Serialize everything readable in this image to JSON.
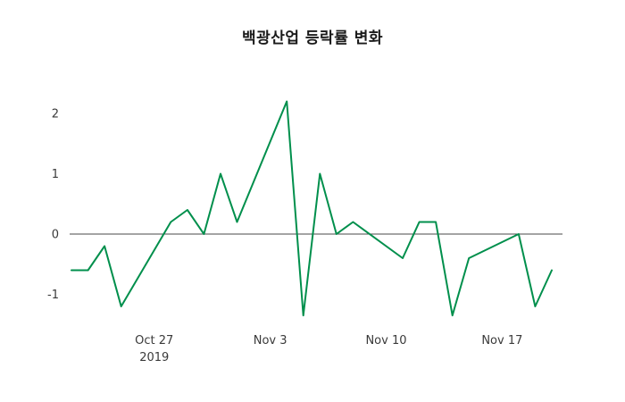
{
  "title": "백광산업 등락률 변화",
  "colors": {
    "line": "#008f4c",
    "zero_line": "#4a4a4a",
    "tick_text": "#3a3a3a",
    "background": "#ffffff"
  },
  "chart_data": {
    "type": "line",
    "title": "백광산업 등락률 변화",
    "xlabel": "",
    "ylabel": "",
    "grid": false,
    "legend": false,
    "zero_line": true,
    "ylim": [
      -1.6,
      2.4
    ],
    "xlim_days": [
      0,
      29
    ],
    "yticks": [
      -1,
      0,
      1,
      2
    ],
    "xticks": [
      {
        "day": 5,
        "label": "Oct 27",
        "sublabel": "2019"
      },
      {
        "day": 12,
        "label": "Nov 3",
        "sublabel": ""
      },
      {
        "day": 19,
        "label": "Nov 10",
        "sublabel": ""
      },
      {
        "day": 26,
        "label": "Nov 17",
        "sublabel": ""
      }
    ],
    "series": [
      {
        "name": "등락률",
        "dates": [
          "2019-10-22",
          "2019-10-23",
          "2019-10-24",
          "2019-10-25",
          "2019-10-28",
          "2019-10-29",
          "2019-10-30",
          "2019-10-31",
          "2019-11-01",
          "2019-11-04",
          "2019-11-05",
          "2019-11-06",
          "2019-11-07",
          "2019-11-08",
          "2019-11-11",
          "2019-11-12",
          "2019-11-13",
          "2019-11-14",
          "2019-11-15",
          "2019-11-18",
          "2019-11-19",
          "2019-11-20"
        ],
        "x_day_offsets": [
          0,
          1,
          2,
          3,
          6,
          7,
          8,
          9,
          10,
          13,
          14,
          15,
          16,
          17,
          20,
          21,
          22,
          23,
          24,
          27,
          28,
          29
        ],
        "values": [
          -0.6,
          -0.6,
          -0.2,
          -1.2,
          0.2,
          0.4,
          0.0,
          1.0,
          0.2,
          2.2,
          -1.35,
          1.0,
          0.0,
          0.2,
          -0.4,
          0.2,
          0.2,
          -1.35,
          -0.4,
          0.0,
          -1.2,
          -0.6
        ]
      }
    ]
  }
}
